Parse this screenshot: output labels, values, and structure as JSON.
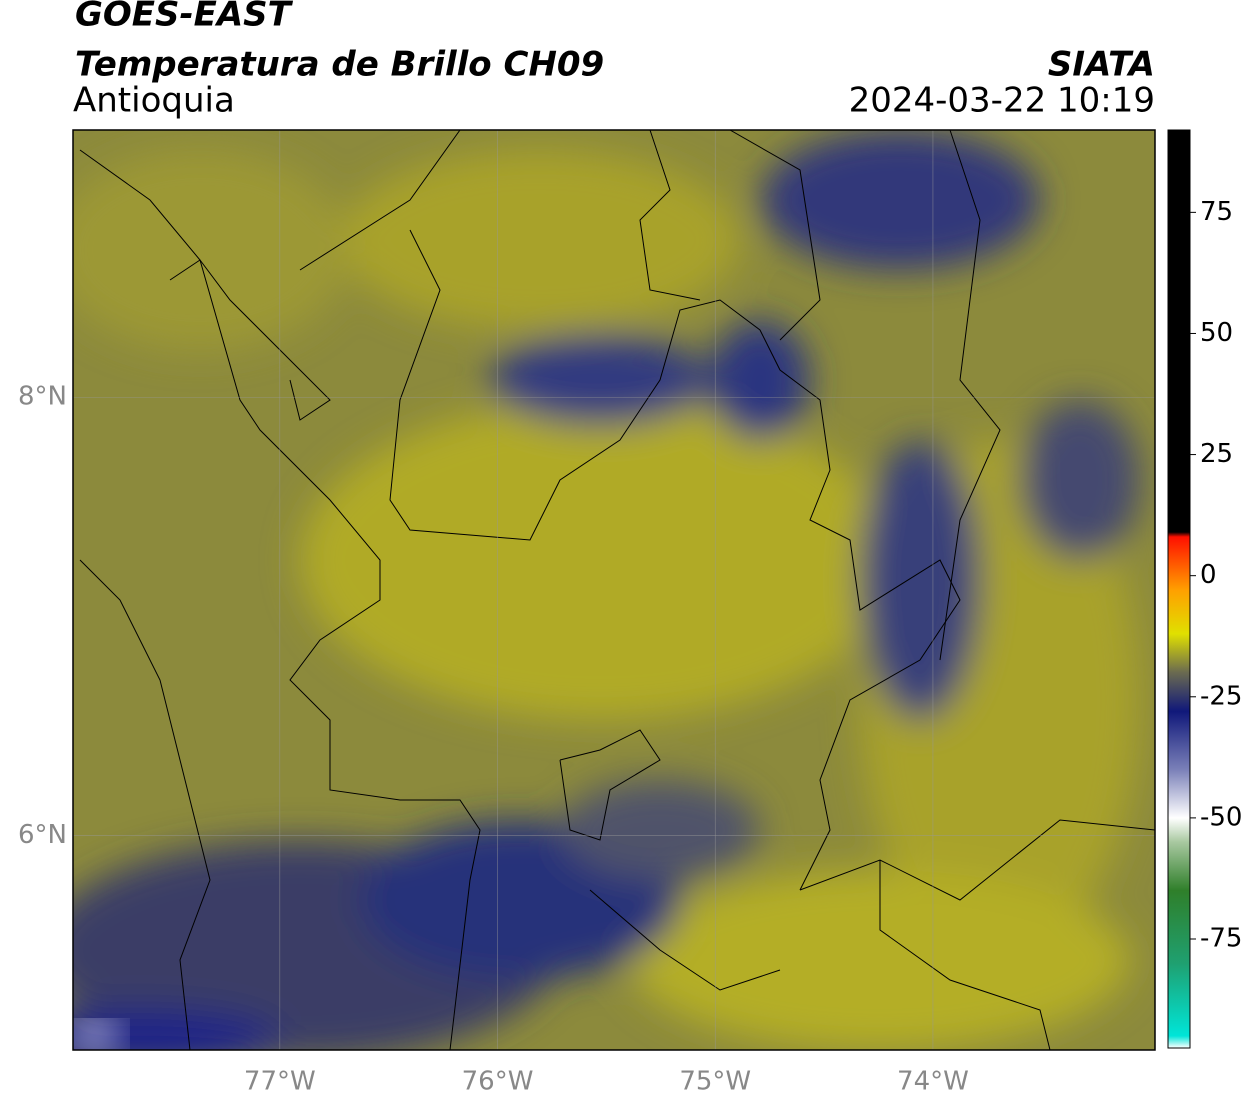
{
  "map": {
    "title": "GOES-EAST",
    "subtitle": "Temperatura de Brillo CH09",
    "source": "SIATA",
    "region": "Antioquia",
    "datetime": "2024-03-22 10:19",
    "xlim": [
      -77.95,
      -72.98
    ],
    "ylim": [
      5.02,
      9.22
    ],
    "xticks": [
      {
        "value": -77,
        "label": "77°W"
      },
      {
        "value": -76,
        "label": "76°W"
      },
      {
        "value": -75,
        "label": "75°W"
      },
      {
        "value": -74,
        "label": "74°W"
      }
    ],
    "yticks": [
      {
        "value": 8,
        "label": "8°N"
      },
      {
        "value": 6,
        "label": "6°N"
      }
    ],
    "grid": true,
    "colorbar": {
      "lim": [
        -97.5,
        92
      ],
      "ticks": [
        75,
        50,
        25,
        0,
        -25,
        -50,
        -75
      ],
      "stops": [
        {
          "value": -97.5,
          "color": "#ffffff"
        },
        {
          "value": -95,
          "color": "#00e5d8"
        },
        {
          "value": -80,
          "color": "#1fa070"
        },
        {
          "value": -65,
          "color": "#2f7f2a"
        },
        {
          "value": -55,
          "color": "#a8c8a0"
        },
        {
          "value": -50,
          "color": "#ffffff"
        },
        {
          "value": -40,
          "color": "#7a80b8"
        },
        {
          "value": -28,
          "color": "#10187a"
        },
        {
          "value": -20,
          "color": "#6a6a50"
        },
        {
          "value": -12,
          "color": "#e0e000"
        },
        {
          "value": -3,
          "color": "#ffa000"
        },
        {
          "value": 8,
          "color": "#ff1000"
        },
        {
          "value": 9,
          "color": "#000000"
        },
        {
          "value": 92,
          "color": "#000000"
        }
      ]
    }
  }
}
